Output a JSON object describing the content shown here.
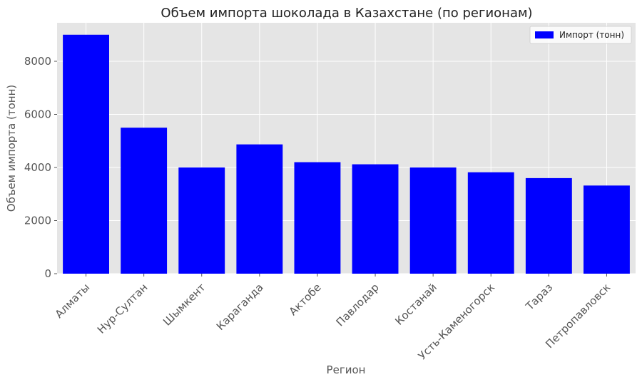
{
  "chart_data": {
    "type": "bar",
    "title": "Объем импорта шоколада в Казахстане (по регионам)",
    "xlabel": "Регион",
    "ylabel": "Объем импорта (тонн)",
    "categories": [
      "Алматы",
      "Нур-Султан",
      "Шымкент",
      "Караганда",
      "Актобе",
      "Павлодар",
      "Костанай",
      "Усть-Каменогорск",
      "Тараз",
      "Петропавловск"
    ],
    "series": [
      {
        "name": "Импорт (тонн)",
        "values": [
          9000,
          5500,
          4000,
          4870,
          4200,
          4120,
          4000,
          3820,
          3600,
          3320
        ]
      }
    ],
    "ylim": [
      0,
      9450
    ],
    "yticks": [
      0,
      2000,
      4000,
      6000,
      8000
    ],
    "grid": true,
    "legend_position": "top-right",
    "bar_color": "#0000ff",
    "plot_background": "#e5e5e5",
    "grid_color": "#ffffff"
  }
}
